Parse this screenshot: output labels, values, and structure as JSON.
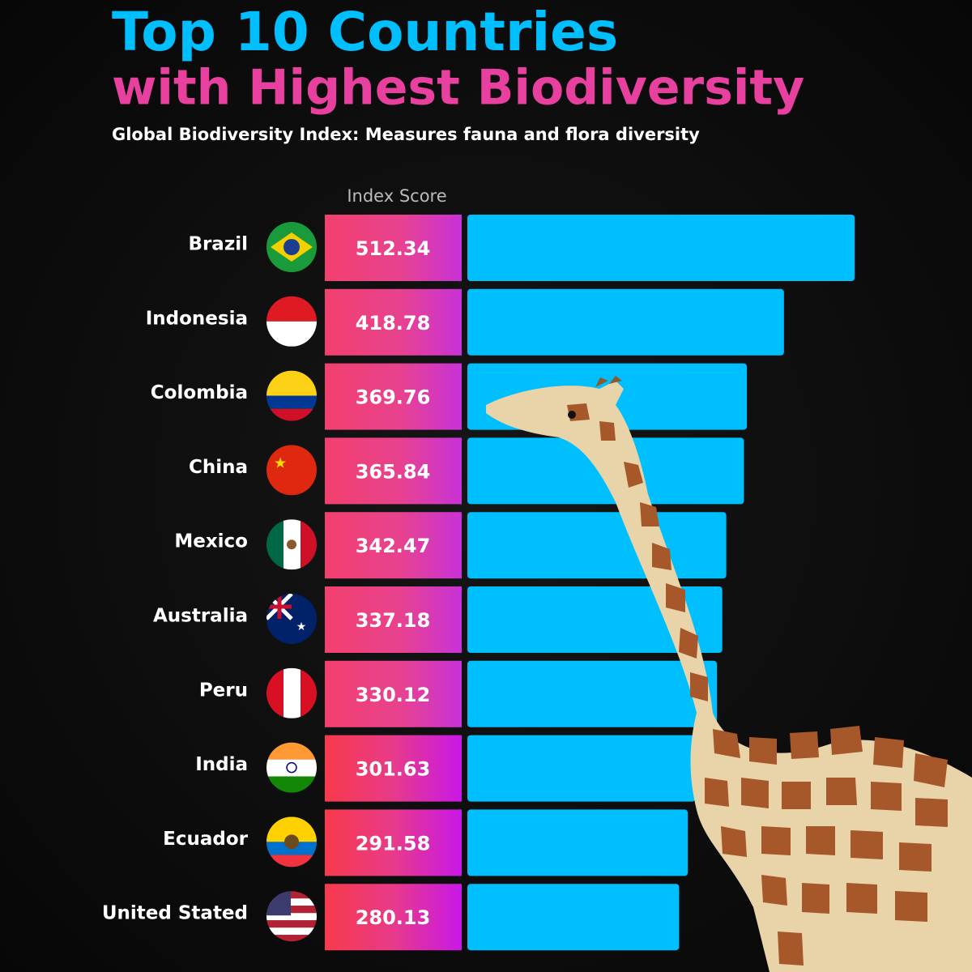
{
  "chart_data": {
    "type": "bar",
    "title": "Top 10 Countries",
    "title_line2": "with Highest Biodiversity",
    "subtitle": "Global Biodiversity Index: Measures fauna and flora diversity",
    "value_header": "Index Score",
    "categories": [
      "Brazil",
      "Indonesia",
      "Colombia",
      "China",
      "Mexico",
      "Australia",
      "Peru",
      "India",
      "Ecuador",
      "United Stated"
    ],
    "values": [
      512.34,
      418.78,
      369.76,
      365.84,
      342.47,
      337.18,
      330.12,
      301.63,
      291.58,
      280.13
    ],
    "color": "#00bfff"
  }
}
